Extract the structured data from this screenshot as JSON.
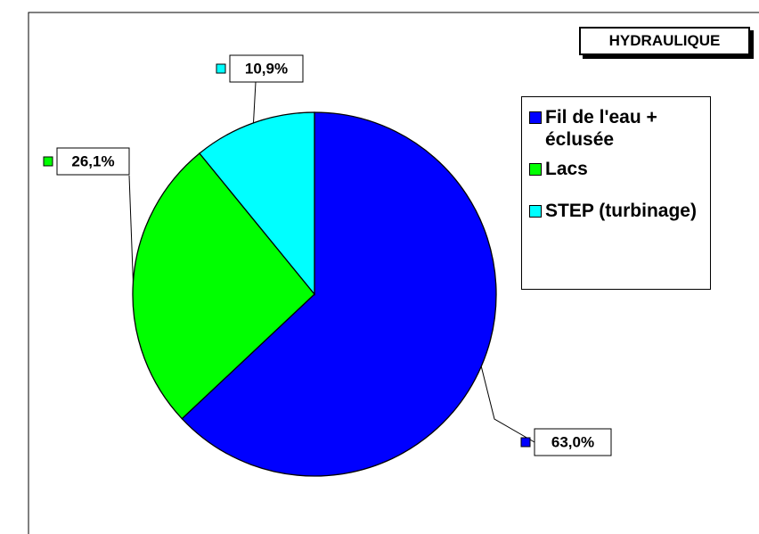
{
  "chart_data": {
    "type": "pie",
    "title": "HYDRAULIQUE",
    "categories": [
      "Fil de l'eau + éclusée",
      "Lacs",
      "STEP (turbinage)"
    ],
    "values": [
      63.0,
      26.1,
      10.9
    ],
    "value_labels": [
      "63,0%",
      "26,1%",
      "10,9%"
    ],
    "colors": [
      "#0000ff",
      "#00ff00",
      "#00ffff"
    ]
  }
}
